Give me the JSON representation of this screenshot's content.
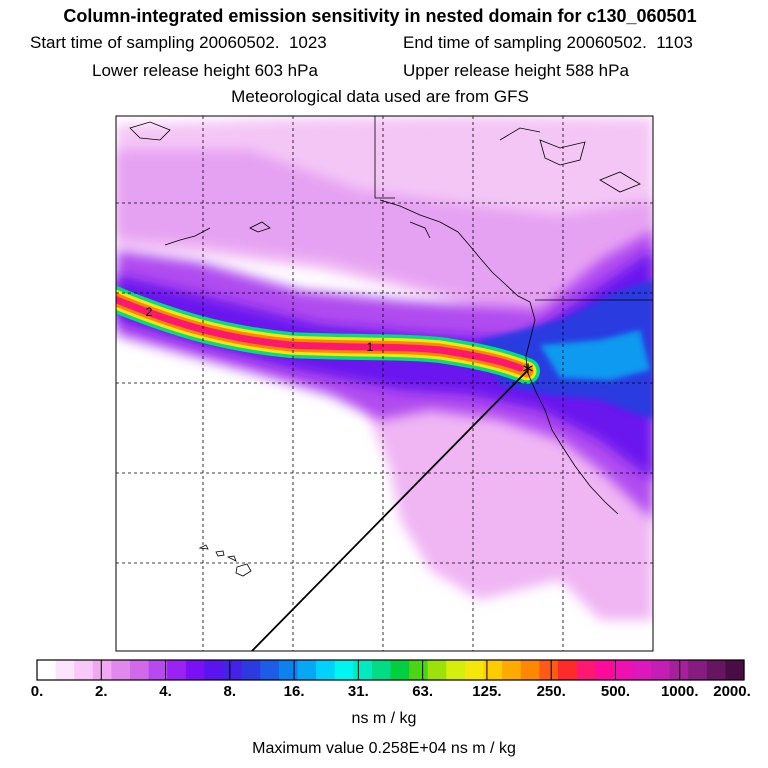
{
  "title": "Column-integrated emission sensitivity in nested domain for c130_060501",
  "sampling": {
    "start_label": "Start time of sampling",
    "start_value": "20060502.  1023",
    "end_label": "End time of sampling",
    "end_value": "20060502.  1103"
  },
  "release": {
    "lower_label": "Lower release height",
    "lower_value": "603 hPa",
    "upper_label": "Upper release height",
    "upper_value": "588 hPa"
  },
  "met_note": "Meteorological data used are from GFS",
  "map": {
    "plume_markers": [
      "2",
      "1"
    ],
    "release_marker": "*"
  },
  "colorbar": {
    "labels": [
      "0.",
      "2.",
      "4.",
      "8.",
      "16.",
      "31.",
      "63.",
      "125.",
      "250.",
      "500.",
      "1000.",
      "2000."
    ],
    "units": "ns m / kg",
    "colors": [
      "#ffffff",
      "#fde4fd",
      "#f8c8f8",
      "#f0a8f0",
      "#e088ee",
      "#d06ae8",
      "#b848ef",
      "#9a22f2",
      "#7a10f5",
      "#5a14ee",
      "#4422e6",
      "#2c3ae0",
      "#1c5ce6",
      "#0d82ee",
      "#06a8f6",
      "#00d2fb",
      "#00f4f0",
      "#00eac2",
      "#00dc84",
      "#00d040",
      "#4cd416",
      "#9ce20a",
      "#d6ee0c",
      "#f4e80a",
      "#ffcc00",
      "#ffaa00",
      "#ff8800",
      "#ff5a18",
      "#ff2a2a",
      "#ff1870",
      "#ff0a9a",
      "#ee10b0",
      "#dc18bc",
      "#c41eb4",
      "#a6209e",
      "#861c80",
      "#661660",
      "#4a0c44"
    ]
  },
  "max_value": "Maximum value  0.258E+04 ns m / kg"
}
